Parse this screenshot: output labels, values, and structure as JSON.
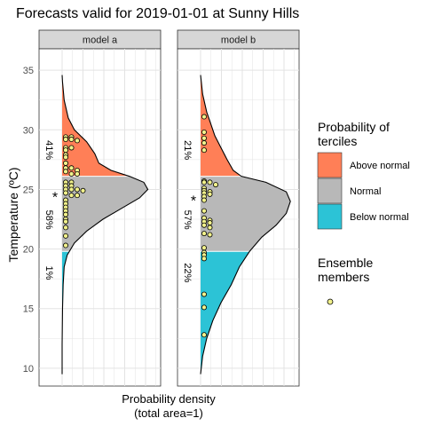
{
  "chart_data": {
    "type": "area",
    "title": "Forecasts valid for 2019-01-01 at Sunny Hills",
    "xlabel_line1": "Probability density",
    "xlabel_line2": "(total area=1)",
    "ylabel": "Temperature (ºC)",
    "ylim": [
      8.5,
      36.8
    ],
    "yticks": [
      10,
      15,
      20,
      25,
      30,
      35
    ],
    "grid": true,
    "legend_position": "right",
    "legend": {
      "title_line1": "Probability of",
      "title_line2": "terciles",
      "items": [
        {
          "label": "Above normal",
          "color": "#FF7F57"
        },
        {
          "label": "Normal",
          "color": "#B8B8B8"
        },
        {
          "label": "Below normal",
          "color": "#2CC3D6"
        }
      ],
      "members_title_line1": "Ensemble",
      "members_title_line2": "members",
      "member_color": "#F2F28C"
    },
    "thresholds": {
      "lower": 19.8,
      "upper": 26.1
    },
    "panels": [
      {
        "name": "model a",
        "density": [
          [
            9.5,
            0.0
          ],
          [
            12.0,
            0.0
          ],
          [
            15.0,
            0.002
          ],
          [
            17.0,
            0.005
          ],
          [
            18.5,
            0.01
          ],
          [
            19.5,
            0.025
          ],
          [
            20.5,
            0.06
          ],
          [
            21.5,
            0.12
          ],
          [
            22.5,
            0.2
          ],
          [
            23.5,
            0.3
          ],
          [
            24.3,
            0.38
          ],
          [
            25.0,
            0.42
          ],
          [
            25.6,
            0.4
          ],
          [
            26.1,
            0.33
          ],
          [
            26.6,
            0.24
          ],
          [
            27.2,
            0.18
          ],
          [
            28.0,
            0.16
          ],
          [
            29.0,
            0.12
          ],
          [
            30.0,
            0.06
          ],
          [
            31.0,
            0.03
          ],
          [
            32.5,
            0.01
          ],
          [
            34.0,
            0.002
          ],
          [
            34.6,
            0.0
          ]
        ],
        "members": [
          29.4,
          29.4,
          29.2,
          29.2,
          29.1,
          28.5,
          28.5,
          28.3,
          27.9,
          27.7,
          27.2,
          26.8,
          26.8,
          26.6,
          26.5,
          26.3,
          26.3,
          25.6,
          25.6,
          25.3,
          25.3,
          25.0,
          25.0,
          25.0,
          24.9,
          24.7,
          24.5,
          24.5,
          24.1,
          23.8,
          23.5,
          23.2,
          22.9,
          22.5,
          22.3,
          21.8,
          21.1,
          20.3
        ],
        "ensemble_mean": 24.7,
        "labels": {
          "above": "41%",
          "normal": "58%",
          "below": "1%"
        }
      },
      {
        "name": "model b",
        "density": [
          [
            9.5,
            0.0
          ],
          [
            11.0,
            0.01
          ],
          [
            12.5,
            0.03
          ],
          [
            14.0,
            0.06
          ],
          [
            15.5,
            0.1
          ],
          [
            17.0,
            0.15
          ],
          [
            18.5,
            0.19
          ],
          [
            19.8,
            0.24
          ],
          [
            21.0,
            0.3
          ],
          [
            22.0,
            0.37
          ],
          [
            23.0,
            0.42
          ],
          [
            24.0,
            0.44
          ],
          [
            24.8,
            0.42
          ],
          [
            25.6,
            0.32
          ],
          [
            26.1,
            0.2
          ],
          [
            26.6,
            0.16
          ],
          [
            27.5,
            0.13
          ],
          [
            28.5,
            0.1
          ],
          [
            29.5,
            0.07
          ],
          [
            30.5,
            0.05
          ],
          [
            31.5,
            0.03
          ],
          [
            33.0,
            0.01
          ],
          [
            34.6,
            0.0
          ]
        ],
        "members": [
          31.1,
          29.8,
          29.3,
          28.9,
          28.3,
          25.7,
          25.6,
          25.6,
          25.4,
          25.1,
          24.9,
          24.8,
          24.7,
          24.6,
          24.4,
          24.1,
          23.2,
          22.6,
          22.4,
          22.3,
          22.2,
          22.0,
          21.8,
          21.3,
          21.2,
          20.1,
          19.7,
          19.5,
          19.2,
          16.2,
          15.1,
          12.8
        ],
        "ensemble_mean": 24.4,
        "labels": {
          "above": "21%",
          "normal": "57%",
          "below": "22%"
        }
      }
    ]
  }
}
